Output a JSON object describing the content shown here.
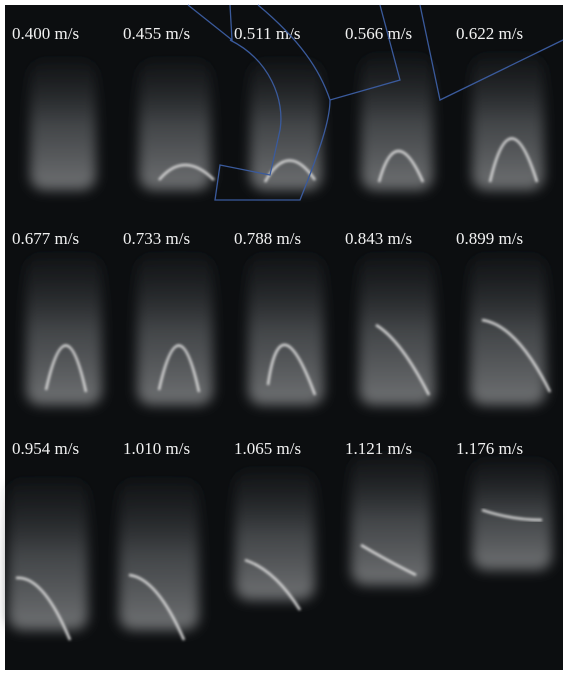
{
  "labels": [
    "0.400 m/s",
    "0.455 m/s",
    "0.511 m/s",
    "0.566 m/s",
    "0.622 m/s",
    "0.677 m/s",
    "0.733 m/s",
    "0.788 m/s",
    "0.843 m/s",
    "0.899 m/s",
    "0.954 m/s",
    "1.010 m/s",
    "1.065 m/s",
    "1.121 m/s",
    "1.176 m/s"
  ]
}
